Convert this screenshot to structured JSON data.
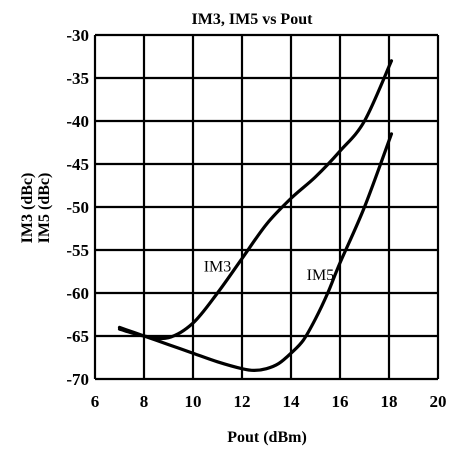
{
  "chart_data": {
    "type": "line",
    "title": "IM3, IM5 vs Pout",
    "xlabel": "Pout (dBm)",
    "ylabel_lines": [
      "IM3 (dBc)",
      "IM5 (dBc)"
    ],
    "xlim": [
      6,
      20
    ],
    "ylim": [
      -70,
      -30
    ],
    "xticks": [
      6,
      8,
      10,
      12,
      14,
      16,
      18,
      20
    ],
    "yticks": [
      -30,
      -35,
      -40,
      -45,
      -50,
      -55,
      -60,
      -65,
      -70
    ],
    "grid": true,
    "legend": "none",
    "series": [
      {
        "name": "IM3",
        "color": "#000000",
        "x": [
          7.0,
          8.0,
          9.0,
          10.0,
          11.0,
          12.0,
          13.0,
          14.0,
          15.0,
          16.0,
          17.0,
          18.1
        ],
        "y": [
          -64.2,
          -65.0,
          -65.2,
          -63.5,
          -60.0,
          -56.0,
          -52.0,
          -49.0,
          -46.5,
          -43.5,
          -40.0,
          -33.0
        ]
      },
      {
        "name": "IM5",
        "color": "#000000",
        "x": [
          7.0,
          8.0,
          9.0,
          10.0,
          11.0,
          12.0,
          12.5,
          13.0,
          13.5,
          14.0,
          14.5,
          15.0,
          15.5,
          16.0,
          17.0,
          18.1
        ],
        "y": [
          -64.0,
          -65.0,
          -66.0,
          -67.0,
          -68.0,
          -68.8,
          -69.0,
          -68.8,
          -68.2,
          -67.0,
          -65.5,
          -63.0,
          -60.0,
          -56.5,
          -50.0,
          -41.5
        ]
      }
    ],
    "annotations": [
      {
        "text": "IM3",
        "x": 11.0,
        "y": -57.5
      },
      {
        "text": "IM5",
        "x": 15.2,
        "y": -58.5
      }
    ]
  }
}
